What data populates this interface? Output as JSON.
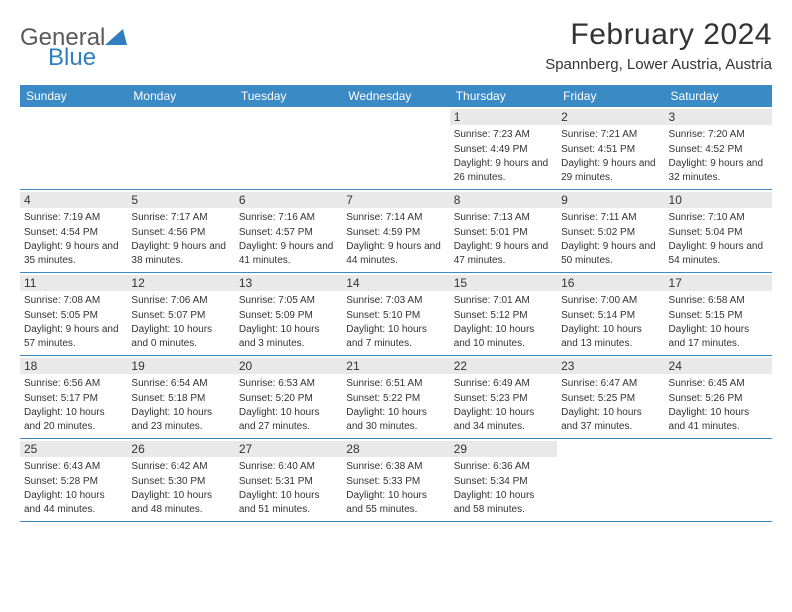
{
  "brand": {
    "name_a": "General",
    "name_b": "Blue"
  },
  "title": "February 2024",
  "location": "Spannberg, Lower Austria, Austria",
  "header_bg": "#3a8ac5",
  "daynum_bg": "#e9e9e9",
  "border_color": "#3a8ac5",
  "text_color": "#333333",
  "dow": [
    "Sunday",
    "Monday",
    "Tuesday",
    "Wednesday",
    "Thursday",
    "Friday",
    "Saturday"
  ],
  "first_dow": 4,
  "days": [
    {
      "n": "1",
      "sr": "7:23 AM",
      "ss": "4:49 PM",
      "dl": "9 hours and 26 minutes."
    },
    {
      "n": "2",
      "sr": "7:21 AM",
      "ss": "4:51 PM",
      "dl": "9 hours and 29 minutes."
    },
    {
      "n": "3",
      "sr": "7:20 AM",
      "ss": "4:52 PM",
      "dl": "9 hours and 32 minutes."
    },
    {
      "n": "4",
      "sr": "7:19 AM",
      "ss": "4:54 PM",
      "dl": "9 hours and 35 minutes."
    },
    {
      "n": "5",
      "sr": "7:17 AM",
      "ss": "4:56 PM",
      "dl": "9 hours and 38 minutes."
    },
    {
      "n": "6",
      "sr": "7:16 AM",
      "ss": "4:57 PM",
      "dl": "9 hours and 41 minutes."
    },
    {
      "n": "7",
      "sr": "7:14 AM",
      "ss": "4:59 PM",
      "dl": "9 hours and 44 minutes."
    },
    {
      "n": "8",
      "sr": "7:13 AM",
      "ss": "5:01 PM",
      "dl": "9 hours and 47 minutes."
    },
    {
      "n": "9",
      "sr": "7:11 AM",
      "ss": "5:02 PM",
      "dl": "9 hours and 50 minutes."
    },
    {
      "n": "10",
      "sr": "7:10 AM",
      "ss": "5:04 PM",
      "dl": "9 hours and 54 minutes."
    },
    {
      "n": "11",
      "sr": "7:08 AM",
      "ss": "5:05 PM",
      "dl": "9 hours and 57 minutes."
    },
    {
      "n": "12",
      "sr": "7:06 AM",
      "ss": "5:07 PM",
      "dl": "10 hours and 0 minutes."
    },
    {
      "n": "13",
      "sr": "7:05 AM",
      "ss": "5:09 PM",
      "dl": "10 hours and 3 minutes."
    },
    {
      "n": "14",
      "sr": "7:03 AM",
      "ss": "5:10 PM",
      "dl": "10 hours and 7 minutes."
    },
    {
      "n": "15",
      "sr": "7:01 AM",
      "ss": "5:12 PM",
      "dl": "10 hours and 10 minutes."
    },
    {
      "n": "16",
      "sr": "7:00 AM",
      "ss": "5:14 PM",
      "dl": "10 hours and 13 minutes."
    },
    {
      "n": "17",
      "sr": "6:58 AM",
      "ss": "5:15 PM",
      "dl": "10 hours and 17 minutes."
    },
    {
      "n": "18",
      "sr": "6:56 AM",
      "ss": "5:17 PM",
      "dl": "10 hours and 20 minutes."
    },
    {
      "n": "19",
      "sr": "6:54 AM",
      "ss": "5:18 PM",
      "dl": "10 hours and 23 minutes."
    },
    {
      "n": "20",
      "sr": "6:53 AM",
      "ss": "5:20 PM",
      "dl": "10 hours and 27 minutes."
    },
    {
      "n": "21",
      "sr": "6:51 AM",
      "ss": "5:22 PM",
      "dl": "10 hours and 30 minutes."
    },
    {
      "n": "22",
      "sr": "6:49 AM",
      "ss": "5:23 PM",
      "dl": "10 hours and 34 minutes."
    },
    {
      "n": "23",
      "sr": "6:47 AM",
      "ss": "5:25 PM",
      "dl": "10 hours and 37 minutes."
    },
    {
      "n": "24",
      "sr": "6:45 AM",
      "ss": "5:26 PM",
      "dl": "10 hours and 41 minutes."
    },
    {
      "n": "25",
      "sr": "6:43 AM",
      "ss": "5:28 PM",
      "dl": "10 hours and 44 minutes."
    },
    {
      "n": "26",
      "sr": "6:42 AM",
      "ss": "5:30 PM",
      "dl": "10 hours and 48 minutes."
    },
    {
      "n": "27",
      "sr": "6:40 AM",
      "ss": "5:31 PM",
      "dl": "10 hours and 51 minutes."
    },
    {
      "n": "28",
      "sr": "6:38 AM",
      "ss": "5:33 PM",
      "dl": "10 hours and 55 minutes."
    },
    {
      "n": "29",
      "sr": "6:36 AM",
      "ss": "5:34 PM",
      "dl": "10 hours and 58 minutes."
    }
  ],
  "labels": {
    "sunrise": "Sunrise: ",
    "sunset": "Sunset: ",
    "daylight": "Daylight: "
  }
}
